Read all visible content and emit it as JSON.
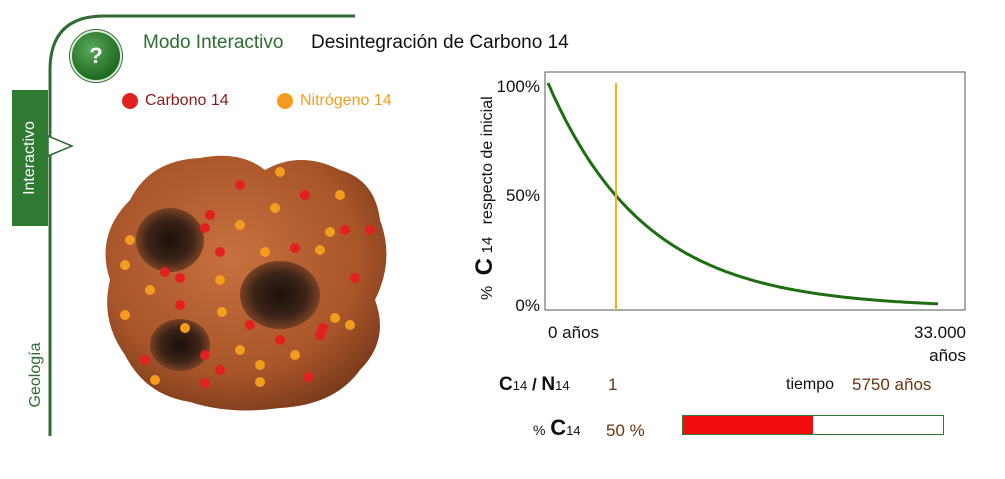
{
  "header": {
    "help_label": "?",
    "mode_label": "Modo Interactivo",
    "title": "Desintegración de Carbono 14"
  },
  "side_tabs": {
    "interactive": "Interactivo",
    "geology": "Geología"
  },
  "legend": {
    "carbon": {
      "label": "Carbono 14",
      "color": "#e32020"
    },
    "nitrogen": {
      "label": "Nitrógeno 14",
      "color": "#f39c1e"
    }
  },
  "chart_data": {
    "type": "line",
    "title": "",
    "ylabel_symbol": "C",
    "ylabel_sub": "14",
    "ylabel_prefix": "%",
    "ylabel_suffix": "respecto de inicial",
    "yticks": [
      "100%",
      "50%",
      "0%"
    ],
    "ylim": [
      0,
      100
    ],
    "xtick_left": "0 años",
    "xtick_right": "33.000",
    "xtick_right_unit": "años",
    "xlim": [
      0,
      33000
    ],
    "half_life": 5730,
    "curve_color": "#1e6e12",
    "cursor_color": "#f5b21a",
    "cursor_x": 5750,
    "grid": false
  },
  "readouts": {
    "ratio_symbol": "C",
    "ratio_sub": "14",
    "ratio_sep": "/",
    "ratio_symbol2": "N",
    "ratio_sub2": "14",
    "ratio_value": "1",
    "time_label": "tiempo",
    "time_value": "5750 años",
    "pct_prefix": "%",
    "pct_symbol": "C",
    "pct_sub": "14",
    "pct_value": "50 %",
    "pct_fraction": 0.5
  }
}
